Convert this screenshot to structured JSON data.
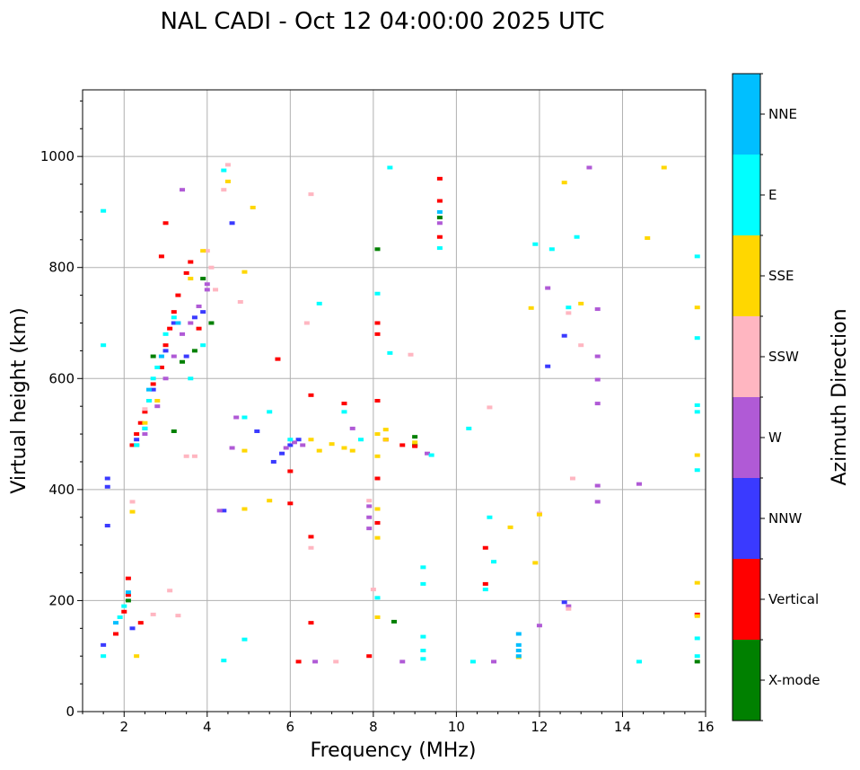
{
  "chart_data": {
    "type": "scatter",
    "title": "NAL CADI - Oct 12 04:00:00 2025 UTC",
    "xlabel": "Frequency (MHz)",
    "ylabel": "Virtual height (km)",
    "xlim": [
      1,
      16
    ],
    "ylim": [
      0,
      1120
    ],
    "grid": true,
    "x_ticks": [
      2,
      4,
      6,
      8,
      10,
      12,
      14,
      16
    ],
    "y_ticks": [
      0,
      200,
      400,
      600,
      800,
      1000
    ],
    "x_minor_step": 0.5,
    "y_minor_step": 50,
    "colorbar": {
      "label": "Azimuth Direction",
      "categories": [
        {
          "name": "X-mode",
          "color": "#008000"
        },
        {
          "name": "Vertical",
          "color": "#ff0000"
        },
        {
          "name": "NNW",
          "color": "#3a3aff"
        },
        {
          "name": "W",
          "color": "#b05ad6"
        },
        {
          "name": "SSW",
          "color": "#ffb6c1"
        },
        {
          "name": "SSE",
          "color": "#ffd700"
        },
        {
          "name": "E",
          "color": "#00ffff"
        },
        {
          "name": "NNE",
          "color": "#00bfff"
        }
      ]
    },
    "series": [
      {
        "name": "X-mode",
        "points": [
          [
            2.7,
            640
          ],
          [
            3.4,
            630
          ],
          [
            3.7,
            650
          ],
          [
            4.1,
            700
          ],
          [
            8.1,
            833
          ],
          [
            8.5,
            162
          ],
          [
            9.0,
            495
          ],
          [
            9.0,
            480
          ],
          [
            9.6,
            890
          ],
          [
            15.8,
            90
          ],
          [
            3.2,
            505
          ],
          [
            2.3,
            480
          ],
          [
            3.9,
            780
          ],
          [
            2.1,
            200
          ]
        ]
      },
      {
        "name": "Vertical",
        "points": [
          [
            2.2,
            480
          ],
          [
            2.3,
            500
          ],
          [
            2.4,
            520
          ],
          [
            2.5,
            540
          ],
          [
            2.6,
            560
          ],
          [
            2.7,
            590
          ],
          [
            2.9,
            620
          ],
          [
            3.0,
            660
          ],
          [
            3.1,
            690
          ],
          [
            3.2,
            720
          ],
          [
            3.3,
            750
          ],
          [
            3.5,
            790
          ],
          [
            3.6,
            810
          ],
          [
            3.0,
            880
          ],
          [
            2.9,
            820
          ],
          [
            3.8,
            690
          ],
          [
            1.8,
            140
          ],
          [
            2.0,
            180
          ],
          [
            2.1,
            210
          ],
          [
            2.1,
            240
          ],
          [
            2.4,
            160
          ],
          [
            6.5,
            570
          ],
          [
            6.0,
            433
          ],
          [
            6.0,
            375
          ],
          [
            6.5,
            315
          ],
          [
            6.5,
            160
          ],
          [
            6.2,
            90
          ],
          [
            7.9,
            100
          ],
          [
            8.1,
            340
          ],
          [
            8.1,
            420
          ],
          [
            8.1,
            680
          ],
          [
            8.1,
            700
          ],
          [
            8.1,
            560
          ],
          [
            8.3,
            490
          ],
          [
            8.7,
            480
          ],
          [
            9.0,
            478
          ],
          [
            9.6,
            960
          ],
          [
            9.6,
            920
          ],
          [
            9.6,
            855
          ],
          [
            10.7,
            295
          ],
          [
            10.7,
            230
          ],
          [
            15.8,
            175
          ],
          [
            5.7,
            635
          ],
          [
            7.3,
            555
          ]
        ]
      },
      {
        "name": "NNW",
        "points": [
          [
            1.6,
            420
          ],
          [
            1.6,
            405
          ],
          [
            1.6,
            335
          ],
          [
            2.3,
            490
          ],
          [
            2.5,
            510
          ],
          [
            2.7,
            580
          ],
          [
            3.0,
            650
          ],
          [
            3.2,
            700
          ],
          [
            3.5,
            640
          ],
          [
            3.7,
            710
          ],
          [
            3.9,
            720
          ],
          [
            4.6,
            880
          ],
          [
            5.6,
            450
          ],
          [
            5.8,
            465
          ],
          [
            6.0,
            480
          ],
          [
            6.2,
            490
          ],
          [
            4.4,
            362
          ],
          [
            12.2,
            622
          ],
          [
            12.6,
            677
          ],
          [
            12.6,
            197
          ],
          [
            2.2,
            150
          ],
          [
            1.5,
            120
          ],
          [
            5.2,
            505
          ]
        ]
      },
      {
        "name": "W",
        "points": [
          [
            2.5,
            500
          ],
          [
            2.8,
            550
          ],
          [
            3.0,
            600
          ],
          [
            3.2,
            640
          ],
          [
            3.4,
            680
          ],
          [
            3.6,
            700
          ],
          [
            3.8,
            730
          ],
          [
            4.0,
            760
          ],
          [
            5.9,
            475
          ],
          [
            6.1,
            485
          ],
          [
            6.3,
            480
          ],
          [
            7.5,
            510
          ],
          [
            7.9,
            370
          ],
          [
            7.9,
            350
          ],
          [
            7.9,
            330
          ],
          [
            8.7,
            90
          ],
          [
            9.3,
            465
          ],
          [
            9.6,
            880
          ],
          [
            10.9,
            90
          ],
          [
            12.2,
            763
          ],
          [
            12.7,
            190
          ],
          [
            13.2,
            980
          ],
          [
            13.4,
            725
          ],
          [
            13.4,
            640
          ],
          [
            13.4,
            598
          ],
          [
            13.4,
            555
          ],
          [
            13.4,
            407
          ],
          [
            13.4,
            378
          ],
          [
            14.4,
            410
          ],
          [
            4.6,
            475
          ],
          [
            4.3,
            362
          ],
          [
            6.6,
            90
          ],
          [
            4.0,
            770
          ],
          [
            3.4,
            940
          ],
          [
            12.0,
            155
          ],
          [
            4.7,
            530
          ]
        ]
      },
      {
        "name": "SSW",
        "points": [
          [
            2.2,
            378
          ],
          [
            2.5,
            545
          ],
          [
            3.1,
            218
          ],
          [
            3.3,
            173
          ],
          [
            3.5,
            460
          ],
          [
            3.7,
            460
          ],
          [
            4.0,
            830
          ],
          [
            4.1,
            800
          ],
          [
            4.2,
            760
          ],
          [
            4.4,
            940
          ],
          [
            4.5,
            985
          ],
          [
            4.8,
            738
          ],
          [
            6.4,
            700
          ],
          [
            6.5,
            295
          ],
          [
            6.5,
            932
          ],
          [
            7.1,
            90
          ],
          [
            8.9,
            643
          ],
          [
            10.8,
            548
          ],
          [
            12.0,
            357
          ],
          [
            12.7,
            718
          ],
          [
            12.8,
            420
          ],
          [
            12.7,
            185
          ],
          [
            13.0,
            660
          ],
          [
            2.7,
            175
          ],
          [
            7.9,
            380
          ],
          [
            8.0,
            220
          ]
        ]
      },
      {
        "name": "SSE",
        "points": [
          [
            2.2,
            360
          ],
          [
            2.3,
            100
          ],
          [
            2.5,
            520
          ],
          [
            2.8,
            560
          ],
          [
            3.6,
            780
          ],
          [
            3.9,
            830
          ],
          [
            4.5,
            955
          ],
          [
            4.9,
            792
          ],
          [
            4.9,
            470
          ],
          [
            4.9,
            365
          ],
          [
            5.1,
            908
          ],
          [
            5.5,
            380
          ],
          [
            6.5,
            490
          ],
          [
            6.7,
            470
          ],
          [
            7.0,
            482
          ],
          [
            7.3,
            475
          ],
          [
            7.5,
            470
          ],
          [
            8.1,
            500
          ],
          [
            8.1,
            460
          ],
          [
            8.1,
            365
          ],
          [
            8.1,
            313
          ],
          [
            8.3,
            508
          ],
          [
            8.3,
            490
          ],
          [
            9.0,
            485
          ],
          [
            11.3,
            332
          ],
          [
            11.5,
            98
          ],
          [
            11.8,
            727
          ],
          [
            11.9,
            268
          ],
          [
            12.0,
            355
          ],
          [
            12.6,
            953
          ],
          [
            13.0,
            735
          ],
          [
            14.6,
            853
          ],
          [
            15.0,
            980
          ],
          [
            15.8,
            728
          ],
          [
            15.8,
            462
          ],
          [
            15.8,
            232
          ],
          [
            15.8,
            172
          ],
          [
            8.1,
            170
          ]
        ]
      },
      {
        "name": "E",
        "points": [
          [
            1.5,
            902
          ],
          [
            1.5,
            660
          ],
          [
            2.3,
            480
          ],
          [
            2.5,
            510
          ],
          [
            2.6,
            560
          ],
          [
            2.7,
            600
          ],
          [
            2.8,
            620
          ],
          [
            3.0,
            680
          ],
          [
            3.2,
            710
          ],
          [
            3.6,
            600
          ],
          [
            3.9,
            660
          ],
          [
            2.0,
            190
          ],
          [
            1.9,
            170
          ],
          [
            1.5,
            100
          ],
          [
            4.4,
            92
          ],
          [
            4.9,
            530
          ],
          [
            4.9,
            130
          ],
          [
            5.5,
            540
          ],
          [
            6.0,
            490
          ],
          [
            6.7,
            735
          ],
          [
            7.3,
            540
          ],
          [
            7.7,
            490
          ],
          [
            8.1,
            753
          ],
          [
            8.1,
            205
          ],
          [
            8.4,
            646
          ],
          [
            8.4,
            980
          ],
          [
            9.2,
            260
          ],
          [
            9.2,
            230
          ],
          [
            9.2,
            110
          ],
          [
            9.2,
            95
          ],
          [
            9.2,
            135
          ],
          [
            9.4,
            462
          ],
          [
            10.3,
            510
          ],
          [
            10.4,
            90
          ],
          [
            10.8,
            350
          ],
          [
            10.9,
            270
          ],
          [
            10.7,
            220
          ],
          [
            11.9,
            842
          ],
          [
            12.3,
            833
          ],
          [
            12.7,
            728
          ],
          [
            12.9,
            855
          ],
          [
            14.4,
            90
          ],
          [
            15.8,
            820
          ],
          [
            15.8,
            673
          ],
          [
            15.8,
            552
          ],
          [
            15.8,
            540
          ],
          [
            15.8,
            435
          ],
          [
            15.8,
            132
          ],
          [
            15.8,
            100
          ],
          [
            4.4,
            975
          ],
          [
            9.6,
            835
          ]
        ]
      },
      {
        "name": "NNE",
        "points": [
          [
            2.9,
            640
          ],
          [
            2.6,
            580
          ],
          [
            3.3,
            700
          ],
          [
            2.1,
            215
          ],
          [
            1.8,
            160
          ],
          [
            11.5,
            140
          ],
          [
            11.5,
            120
          ],
          [
            11.5,
            110
          ],
          [
            11.5,
            100
          ],
          [
            9.6,
            900
          ]
        ]
      }
    ]
  }
}
